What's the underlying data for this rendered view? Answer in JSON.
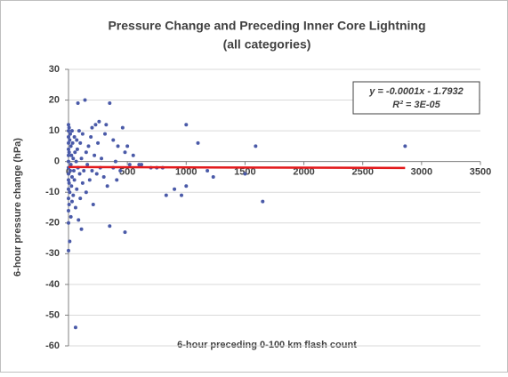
{
  "chart_data": {
    "type": "scatter",
    "title": "Pressure Change and Preceding Inner Core Lightning",
    "subtitle": "(all categories)",
    "x_label": "6-hour preceding 0-100 km flash count",
    "y_label": "6-hour pressure change (hPa)",
    "color": "#4a5aa8",
    "xlim": [
      0,
      3500
    ],
    "ylim": [
      -60,
      30
    ],
    "xticks": [
      0,
      500,
      1000,
      1500,
      2000,
      2500,
      3000,
      3500
    ],
    "yticks": [
      -60,
      -50,
      -40,
      -30,
      -20,
      -10,
      0,
      10,
      20,
      30
    ],
    "grid": true,
    "x": [
      0,
      0,
      0,
      0,
      0,
      0,
      0,
      0,
      0,
      0,
      0,
      0,
      0,
      0,
      0,
      5,
      5,
      5,
      5,
      10,
      10,
      10,
      15,
      15,
      20,
      20,
      20,
      25,
      25,
      30,
      30,
      30,
      35,
      40,
      40,
      45,
      50,
      50,
      55,
      60,
      60,
      65,
      70,
      70,
      75,
      80,
      80,
      85,
      90,
      95,
      100,
      100,
      110,
      110,
      120,
      120,
      130,
      140,
      150,
      150,
      160,
      170,
      180,
      190,
      200,
      200,
      210,
      220,
      230,
      240,
      250,
      260,
      270,
      280,
      300,
      310,
      320,
      330,
      350,
      350,
      380,
      380,
      400,
      410,
      420,
      440,
      460,
      480,
      480,
      500,
      520,
      550,
      600,
      620,
      700,
      750,
      800,
      830,
      900,
      960,
      1000,
      1000,
      1100,
      1180,
      1230,
      1500,
      1590,
      1650,
      2860
    ],
    "y": [
      12,
      10,
      8,
      6,
      4,
      2,
      0,
      -2,
      -4,
      -6,
      -9,
      -12,
      -16,
      -20,
      -29,
      11,
      3,
      -7,
      -14,
      -26,
      7,
      -10,
      9,
      -3,
      5,
      -1,
      -18,
      2,
      -8,
      10,
      -5,
      -13,
      6,
      1,
      -11,
      -3,
      8,
      -6,
      3,
      -54,
      -15,
      0,
      7,
      -9,
      4,
      19,
      -2,
      -19,
      10,
      -4,
      6,
      -12,
      -22,
      1,
      -7,
      9,
      -3,
      20,
      3,
      -10,
      -1,
      5,
      -6,
      8,
      11,
      -3,
      -14,
      2,
      12,
      -4,
      6,
      13,
      -2,
      1,
      -5,
      9,
      12,
      -8,
      19,
      -21,
      7,
      -2,
      0,
      -6,
      5,
      -3,
      11,
      -23,
      3,
      5,
      -1,
      2,
      -1,
      -1,
      -2,
      -2,
      -2,
      -11,
      -9,
      -11,
      12,
      -8,
      6,
      -3,
      -5,
      -4,
      5,
      -13,
      5
    ],
    "trendline": {
      "equation": "y = -0.0001x - 1.7932",
      "r2": "R² = 3E-05",
      "slope": -0.0001,
      "intercept": -1.7932,
      "xrange": [
        0,
        2860
      ],
      "color": "#e31a1c"
    }
  }
}
